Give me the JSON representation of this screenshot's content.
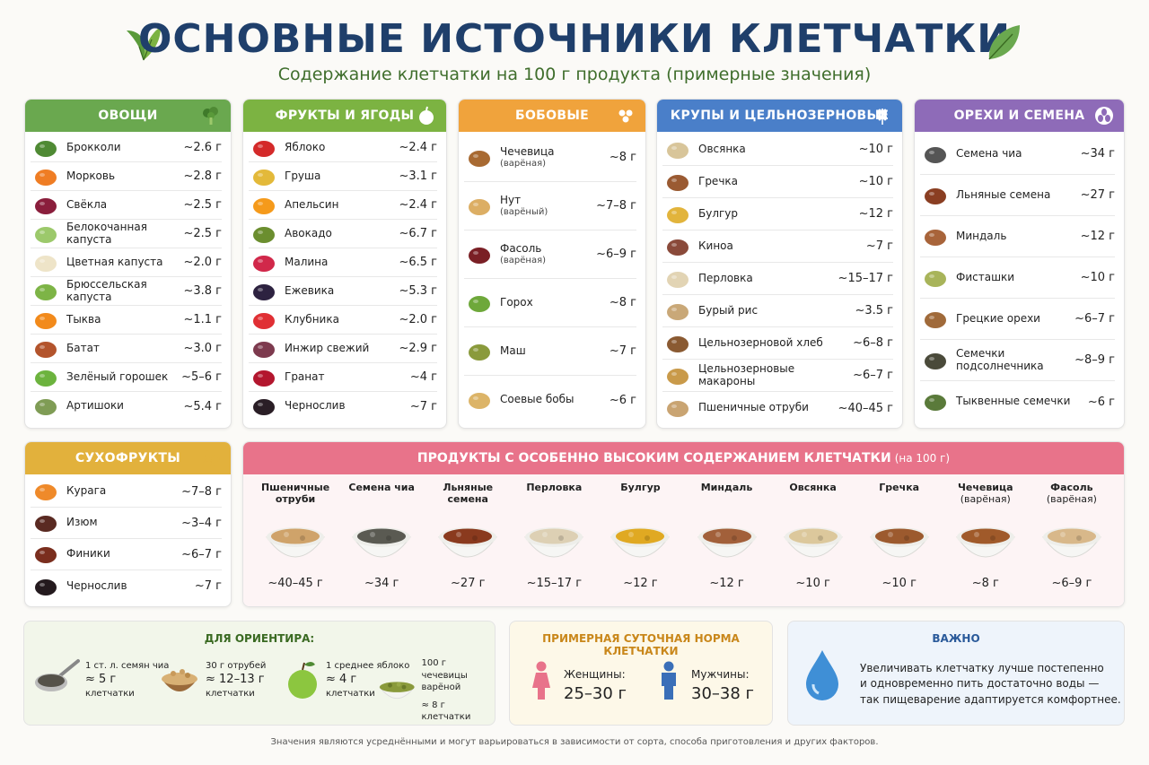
{
  "header": {
    "title": "ОСНОВНЫЕ ИСТОЧНИКИ КЛЕТЧАТКИ",
    "subtitle": "Содержание клетчатки на 100 г продукта (примерные значения)"
  },
  "colors": {
    "vegetables": "#6aa84f",
    "fruits": "#7cb342",
    "legumes": "#f0a33c",
    "grains": "#4a7fc9",
    "nuts": "#8e6bb8",
    "dried": "#e2b13c",
    "high": "#e8738a",
    "title": "#1f3f6b"
  },
  "categories": [
    {
      "key": "vegetables",
      "title": "ОВОЩИ",
      "icon": "broccoli-icon",
      "items": [
        {
          "name": "Брокколи",
          "note": "",
          "value": "~2.6 г",
          "icon": "broccoli-icon",
          "color": "#4f8a34"
        },
        {
          "name": "Морковь",
          "note": "",
          "value": "~2.8 г",
          "icon": "carrot-icon",
          "color": "#ef7d24"
        },
        {
          "name": "Свёкла",
          "note": "",
          "value": "~2.5 г",
          "icon": "beet-icon",
          "color": "#8a1e3c"
        },
        {
          "name": "Белокочанная капуста",
          "note": "",
          "value": "~2.5 г",
          "icon": "cabbage-icon",
          "color": "#9cc96b"
        },
        {
          "name": "Цветная капуста",
          "note": "",
          "value": "~2.0 г",
          "icon": "cauliflower-icon",
          "color": "#eee4c8"
        },
        {
          "name": "Брюссельская капуста",
          "note": "",
          "value": "~3.8 г",
          "icon": "brussels-sprouts-icon",
          "color": "#7db446"
        },
        {
          "name": "Тыква",
          "note": "",
          "value": "~1.1 г",
          "icon": "pumpkin-icon",
          "color": "#f28a1b"
        },
        {
          "name": "Батат",
          "note": "",
          "value": "~3.0 г",
          "icon": "sweet-potato-icon",
          "color": "#b3542c"
        },
        {
          "name": "Зелёный горошек",
          "note": "",
          "value": "~5–6 г",
          "icon": "green-peas-icon",
          "color": "#6cb33e"
        },
        {
          "name": "Артишоки",
          "note": "",
          "value": "~5.4 г",
          "icon": "artichoke-icon",
          "color": "#7f9c55"
        }
      ]
    },
    {
      "key": "fruits",
      "title": "ФРУКТЫ И ЯГОДЫ",
      "icon": "apple-icon",
      "items": [
        {
          "name": "Яблоко",
          "note": "",
          "value": "~2.4 г",
          "icon": "apple-icon",
          "color": "#d42a2a"
        },
        {
          "name": "Груша",
          "note": "",
          "value": "~3.1 г",
          "icon": "pear-icon",
          "color": "#e3b93a"
        },
        {
          "name": "Апельсин",
          "note": "",
          "value": "~2.4 г",
          "icon": "orange-icon",
          "color": "#f59a1b"
        },
        {
          "name": "Авокадо",
          "note": "",
          "value": "~6.7 г",
          "icon": "avocado-icon",
          "color": "#6b8e2f"
        },
        {
          "name": "Малина",
          "note": "",
          "value": "~6.5 г",
          "icon": "raspberry-icon",
          "color": "#d1284a"
        },
        {
          "name": "Ежевика",
          "note": "",
          "value": "~5.3 г",
          "icon": "blackberry-icon",
          "color": "#2d2240"
        },
        {
          "name": "Клубника",
          "note": "",
          "value": "~2.0 г",
          "icon": "strawberry-icon",
          "color": "#e02f34"
        },
        {
          "name": "Инжир свежий",
          "note": "",
          "value": "~2.9 г",
          "icon": "fig-icon",
          "color": "#7d3a4e"
        },
        {
          "name": "Гранат",
          "note": "",
          "value": "~4 г",
          "icon": "pomegranate-icon",
          "color": "#b3162e"
        },
        {
          "name": "Чернослив",
          "note": "",
          "value": "~7 г",
          "icon": "prune-icon",
          "color": "#2a1e26"
        }
      ]
    },
    {
      "key": "legumes",
      "title": "БОБОВЫЕ",
      "icon": "beans-icon",
      "items": [
        {
          "name": "Чечевица",
          "note": "(варёная)",
          "value": "~8 г",
          "icon": "lentils-icon",
          "color": "#a86a32"
        },
        {
          "name": "Нут",
          "note": "(варёный)",
          "value": "~7–8 г",
          "icon": "chickpeas-icon",
          "color": "#dcae64"
        },
        {
          "name": "Фасоль",
          "note": "(варёная)",
          "value": "~6–9 г",
          "icon": "kidney-beans-icon",
          "color": "#7a1f25"
        },
        {
          "name": "Горох",
          "note": "",
          "value": "~8 г",
          "icon": "peas-icon",
          "color": "#6ea83a"
        },
        {
          "name": "Маш",
          "note": "",
          "value": "~7 г",
          "icon": "mung-beans-icon",
          "color": "#8a9a3c"
        },
        {
          "name": "Соевые бобы",
          "note": "",
          "value": "~6 г",
          "icon": "soybeans-icon",
          "color": "#dcb468"
        }
      ]
    },
    {
      "key": "grains",
      "title": "КРУПЫ И ЦЕЛЬНОЗЕРНОВЫЕ",
      "icon": "wheat-icon",
      "items": [
        {
          "name": "Овсянка",
          "note": "",
          "value": "~10 г",
          "icon": "oats-icon",
          "color": "#d8c59a"
        },
        {
          "name": "Гречка",
          "note": "",
          "value": "~10 г",
          "icon": "buckwheat-icon",
          "color": "#9a5a32"
        },
        {
          "name": "Булгур",
          "note": "",
          "value": "~12 г",
          "icon": "bulgur-icon",
          "color": "#e2b43c"
        },
        {
          "name": "Киноа",
          "note": "",
          "value": "~7 г",
          "icon": "quinoa-icon",
          "color": "#8a4a3a"
        },
        {
          "name": "Перловка",
          "note": "",
          "value": "~15–17 г",
          "icon": "pearl-barley-icon",
          "color": "#e2d4b4"
        },
        {
          "name": "Бурый рис",
          "note": "",
          "value": "~3.5 г",
          "icon": "brown-rice-icon",
          "color": "#c9a878"
        },
        {
          "name": "Цельнозерновой хлеб",
          "note": "",
          "value": "~6–8 г",
          "icon": "bread-icon",
          "color": "#8a5a32"
        },
        {
          "name": "Цельнозерновые макароны",
          "note": "",
          "value": "~6–7 г",
          "icon": "pasta-icon",
          "color": "#c99a4a"
        },
        {
          "name": "Пшеничные отруби",
          "note": "",
          "value": "~40–45 г",
          "icon": "wheat-bran-icon",
          "color": "#c9a472"
        }
      ]
    },
    {
      "key": "nuts",
      "title": "ОРЕХИ И СЕМЕНА",
      "icon": "seeds-icon",
      "items": [
        {
          "name": "Семена чиа",
          "note": "",
          "value": "~34 г",
          "icon": "chia-seeds-icon",
          "color": "#555"
        },
        {
          "name": "Льняные семена",
          "note": "",
          "value": "~27 г",
          "icon": "flax-seeds-icon",
          "color": "#8a3e22"
        },
        {
          "name": "Миндаль",
          "note": "",
          "value": "~12 г",
          "icon": "almonds-icon",
          "color": "#a8643a"
        },
        {
          "name": "Фисташки",
          "note": "",
          "value": "~10 г",
          "icon": "pistachios-icon",
          "color": "#a8b45a"
        },
        {
          "name": "Грецкие орехи",
          "note": "",
          "value": "~6–7 г",
          "icon": "walnuts-icon",
          "color": "#a06a3a"
        },
        {
          "name": "Семечки подсолнечника",
          "note": "",
          "value": "~8–9 г",
          "icon": "sunflower-seeds-icon",
          "color": "#4a4a3a"
        },
        {
          "name": "Тыквенные семечки",
          "note": "",
          "value": "~6 г",
          "icon": "pumpkin-seeds-icon",
          "color": "#5a7a3a"
        }
      ]
    },
    {
      "key": "dried",
      "title": "СУХОФРУКТЫ",
      "icon": "dried-fruit-icon",
      "items": [
        {
          "name": "Курага",
          "note": "",
          "value": "~7–8 г",
          "icon": "dried-apricot-icon",
          "color": "#ef8a2a"
        },
        {
          "name": "Изюм",
          "note": "",
          "value": "~3–4 г",
          "icon": "raisins-icon",
          "color": "#5a2a22"
        },
        {
          "name": "Финики",
          "note": "",
          "value": "~6–7 г",
          "icon": "dates-icon",
          "color": "#7a2e1e"
        },
        {
          "name": "Чернослив",
          "note": "",
          "value": "~7 г",
          "icon": "prunes-icon",
          "color": "#241a1e"
        }
      ]
    }
  ],
  "high_fiber": {
    "title": "ПРОДУКТЫ С ОСОБЕННО ВЫСОКИМ СОДЕРЖАНИЕМ КЛЕТЧАТКИ",
    "title_suffix": "(на 100 г)",
    "items": [
      {
        "name": "Пшеничные отруби",
        "note": "",
        "value": "~40–45 г",
        "color": "#cfa36a"
      },
      {
        "name": "Семена чиа",
        "note": "",
        "value": "~34 г",
        "color": "#5a5a52"
      },
      {
        "name": "Льняные семена",
        "note": "",
        "value": "~27 г",
        "color": "#8a3a1e"
      },
      {
        "name": "Перловка",
        "note": "",
        "value": "~15–17 г",
        "color": "#ddd0b4"
      },
      {
        "name": "Булгур",
        "note": "",
        "value": "~12 г",
        "color": "#e0a922"
      },
      {
        "name": "Миндаль",
        "note": "",
        "value": "~12 г",
        "color": "#a2603a"
      },
      {
        "name": "Овсянка",
        "note": "",
        "value": "~10 г",
        "color": "#dcc89c"
      },
      {
        "name": "Гречка",
        "note": "",
        "value": "~10 г",
        "color": "#9c5a2e"
      },
      {
        "name": "Чечевица",
        "note": "(варёная)",
        "value": "~8 г",
        "color": "#a05a2a"
      },
      {
        "name": "Фасоль",
        "note": "(варёная)",
        "value": "~6–9 г",
        "color": "#d8b88a"
      }
    ]
  },
  "guide": {
    "title": "ДЛЯ ОРИЕНТИРА:",
    "items": [
      {
        "line1": "1 ст. л. семян чиа",
        "amount": "≈ 5 г",
        "line3": "клетчатки",
        "icon": "spoon-chia-icon"
      },
      {
        "line1": "30 г отрубей",
        "amount": "≈ 12–13 г",
        "line3": "клетчатки",
        "icon": "bran-bowl-icon"
      },
      {
        "line1": "1 среднее яблоко",
        "amount": "≈ 4 г",
        "line3": "клетчатки",
        "icon": "green-apple-icon"
      },
      {
        "line1": "100 г чечевицы",
        "line2": "варёной",
        "amount": "≈ 8 г клетчатки",
        "icon": "lentil-bowl-icon"
      }
    ]
  },
  "daily": {
    "title": "ПРИМЕРНАЯ СУТОЧНАЯ НОРМА КЛЕТЧАТКИ",
    "women_label": "Женщины:",
    "women_value": "25–30 г",
    "men_label": "Мужчины:",
    "men_value": "30–38 г"
  },
  "important": {
    "title": "ВАЖНО",
    "line1": "Увеличивать клетчатку лучше постепенно",
    "line2": "и одновременно пить достаточно воды —",
    "line3": "так пищеварение адаптируется комфортнее."
  },
  "footer": "Значения являются усреднёнными и могут варьироваться в зависимости от сорта, способа приготовления и других факторов."
}
